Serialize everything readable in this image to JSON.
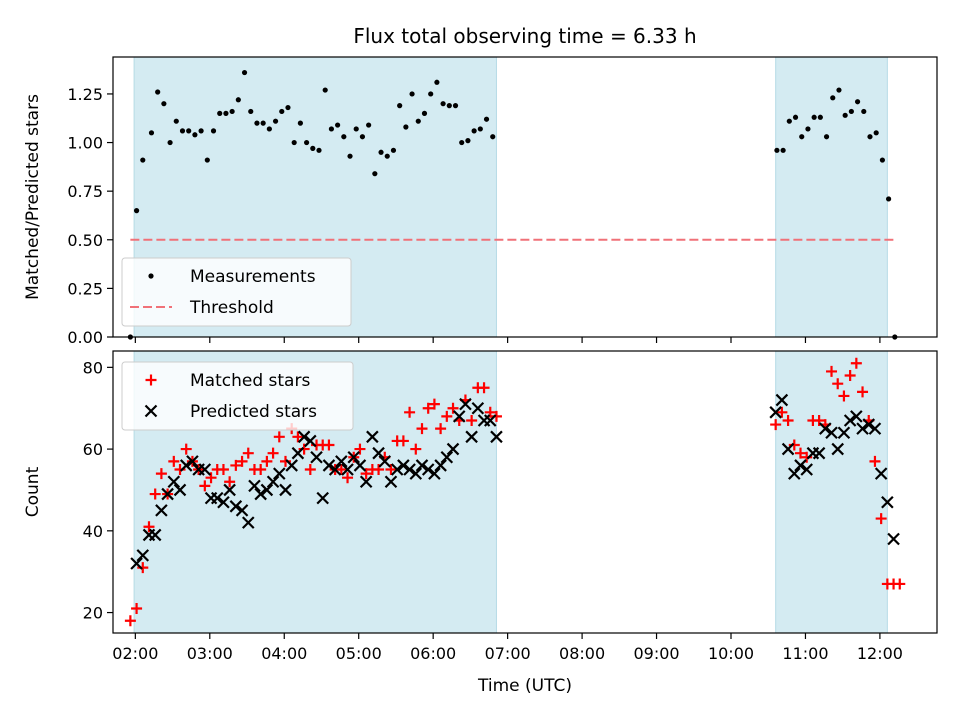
{
  "chart_data": [
    {
      "type": "scatter",
      "title": "Flux total observing time = 6.33 h",
      "xlabel": "",
      "ylabel": "Matched/Predicted stars",
      "ylim": [
        0,
        1.44
      ],
      "yticks": [
        "0.00",
        "0.25",
        "0.50",
        "0.75",
        "1.00",
        "1.25"
      ],
      "shaded_intervals": [
        [
          "01:59",
          "06:51"
        ],
        [
          "10:36",
          "12:06"
        ]
      ],
      "series": [
        {
          "name": "Measurements",
          "kind": "dot",
          "color": "#000000",
          "x": [
            "01:56",
            "02:01",
            "02:06",
            "02:13",
            "02:18",
            "02:23",
            "02:28",
            "02:33",
            "02:38",
            "02:43",
            "02:48",
            "02:53",
            "02:58",
            "03:03",
            "03:08",
            "03:13",
            "03:18",
            "03:23",
            "03:28",
            "03:33",
            "03:38",
            "03:43",
            "03:48",
            "03:53",
            "03:58",
            "04:03",
            "04:08",
            "04:13",
            "04:18",
            "04:23",
            "04:28",
            "04:33",
            "04:38",
            "04:43",
            "04:48",
            "04:53",
            "04:58",
            "05:03",
            "05:08",
            "05:13",
            "05:18",
            "05:23",
            "05:28",
            "05:33",
            "05:38",
            "05:43",
            "05:48",
            "05:53",
            "05:58",
            "06:03",
            "06:08",
            "06:13",
            "06:18",
            "06:23",
            "06:28",
            "06:33",
            "06:38",
            "06:43",
            "06:48",
            "10:37",
            "10:42",
            "10:47",
            "10:52",
            "10:57",
            "11:02",
            "11:07",
            "11:12",
            "11:17",
            "11:22",
            "11:27",
            "11:32",
            "11:37",
            "11:42",
            "11:47",
            "11:52",
            "11:57",
            "12:02",
            "12:07",
            "12:12"
          ],
          "y": [
            0.0,
            0.65,
            0.91,
            1.05,
            1.26,
            1.2,
            1.0,
            1.11,
            1.06,
            1.06,
            1.04,
            1.06,
            0.91,
            1.06,
            1.15,
            1.15,
            1.16,
            1.22,
            1.36,
            1.16,
            1.1,
            1.1,
            1.07,
            1.11,
            1.16,
            1.18,
            1.0,
            1.1,
            1.0,
            0.97,
            0.96,
            1.27,
            1.07,
            1.09,
            1.03,
            0.93,
            1.07,
            1.03,
            1.09,
            0.84,
            0.95,
            0.93,
            0.96,
            1.19,
            1.08,
            1.25,
            1.11,
            1.15,
            1.25,
            1.31,
            1.2,
            1.19,
            1.19,
            1.0,
            1.01,
            1.06,
            1.07,
            1.12,
            1.03,
            0.96,
            0.96,
            1.11,
            1.13,
            1.03,
            1.07,
            1.13,
            1.13,
            1.03,
            1.23,
            1.27,
            1.14,
            1.16,
            1.21,
            1.16,
            1.03,
            1.05,
            0.91,
            0.71,
            0.0
          ]
        },
        {
          "name": "Threshold",
          "kind": "dashed-line",
          "color": "#f07178",
          "x": [
            "01:56",
            "12:12"
          ],
          "y": [
            0.5,
            0.5
          ]
        }
      ],
      "legend": "lower-left"
    },
    {
      "type": "scatter",
      "xlabel": "Time (UTC)",
      "ylabel": "Count",
      "ylim": [
        15,
        84
      ],
      "yticks": [
        "20",
        "40",
        "60",
        "80"
      ],
      "xticks": [
        "02:00",
        "03:00",
        "04:00",
        "05:00",
        "06:00",
        "07:00",
        "08:00",
        "09:00",
        "10:00",
        "11:00",
        "12:00"
      ],
      "shaded_intervals": [
        [
          "01:59",
          "06:51"
        ],
        [
          "10:36",
          "12:06"
        ]
      ],
      "series": [
        {
          "name": "Matched stars",
          "kind": "plus",
          "color": "#ff0000",
          "x": [
            "01:56",
            "02:01",
            "02:06",
            "02:11",
            "02:16",
            "02:21",
            "02:26",
            "02:31",
            "02:36",
            "02:41",
            "02:46",
            "02:51",
            "02:56",
            "03:01",
            "03:06",
            "03:11",
            "03:16",
            "03:21",
            "03:26",
            "03:31",
            "03:36",
            "03:41",
            "03:46",
            "03:51",
            "03:56",
            "04:01",
            "04:06",
            "04:11",
            "04:16",
            "04:21",
            "04:26",
            "04:31",
            "04:36",
            "04:41",
            "04:46",
            "04:51",
            "04:56",
            "05:01",
            "05:06",
            "05:11",
            "05:16",
            "05:21",
            "05:26",
            "05:31",
            "05:36",
            "05:41",
            "05:46",
            "05:51",
            "05:56",
            "06:01",
            "06:06",
            "06:11",
            "06:16",
            "06:21",
            "06:26",
            "06:31",
            "06:36",
            "06:41",
            "06:46",
            "06:51",
            "10:36",
            "10:41",
            "10:46",
            "10:51",
            "10:56",
            "11:01",
            "11:06",
            "11:11",
            "11:16",
            "11:21",
            "11:26",
            "11:31",
            "11:36",
            "11:41",
            "11:46",
            "11:51",
            "11:56",
            "12:01",
            "12:06",
            "12:11",
            "12:16"
          ],
          "y": [
            18,
            21,
            31,
            41,
            49,
            54,
            49,
            57,
            55,
            60,
            57,
            55,
            51,
            53,
            55,
            55,
            52,
            56,
            57,
            59,
            55,
            55,
            57,
            59,
            63,
            57,
            65,
            63,
            60,
            55,
            61,
            61,
            61,
            55,
            55,
            53,
            58,
            60,
            54,
            55,
            55,
            58,
            55,
            62,
            62,
            69,
            60,
            65,
            70,
            71,
            65,
            68,
            70,
            67,
            72,
            67,
            75,
            75,
            69,
            68,
            66,
            69,
            67,
            61,
            59,
            58,
            67,
            67,
            66,
            79,
            76,
            73,
            78,
            81,
            74,
            67,
            57,
            43,
            27,
            27,
            27
          ]
        },
        {
          "name": "Predicted stars",
          "kind": "x",
          "color": "#000000",
          "x": [
            "02:01",
            "02:06",
            "02:11",
            "02:16",
            "02:21",
            "02:26",
            "02:31",
            "02:36",
            "02:41",
            "02:46",
            "02:51",
            "02:56",
            "03:01",
            "03:06",
            "03:11",
            "03:16",
            "03:21",
            "03:26",
            "03:31",
            "03:36",
            "03:41",
            "03:46",
            "03:51",
            "03:56",
            "04:01",
            "04:06",
            "04:11",
            "04:16",
            "04:21",
            "04:26",
            "04:31",
            "04:36",
            "04:41",
            "04:46",
            "04:51",
            "04:56",
            "05:01",
            "05:06",
            "05:11",
            "05:16",
            "05:21",
            "05:26",
            "05:31",
            "05:36",
            "05:41",
            "05:46",
            "05:51",
            "05:56",
            "06:01",
            "06:06",
            "06:11",
            "06:16",
            "06:21",
            "06:26",
            "06:31",
            "06:36",
            "06:41",
            "06:46",
            "06:51",
            "10:36",
            "10:41",
            "10:46",
            "10:51",
            "10:56",
            "11:01",
            "11:06",
            "11:11",
            "11:16",
            "11:21",
            "11:26",
            "11:31",
            "11:36",
            "11:41",
            "11:46",
            "11:51",
            "11:56",
            "12:01",
            "12:06",
            "12:11"
          ],
          "y": [
            32,
            34,
            39,
            39,
            45,
            49,
            52,
            50,
            56,
            57,
            55,
            55,
            48,
            48,
            47,
            50,
            46,
            45,
            42,
            51,
            49,
            50,
            52,
            54,
            50,
            56,
            59,
            63,
            62,
            58,
            48,
            56,
            55,
            57,
            55,
            58,
            56,
            52,
            63,
            59,
            57,
            52,
            55,
            56,
            55,
            54,
            56,
            55,
            54,
            56,
            58,
            60,
            68,
            71,
            63,
            70,
            67,
            67,
            63,
            69,
            72,
            60,
            54,
            56,
            55,
            59,
            59,
            65,
            64,
            60,
            64,
            67,
            68,
            65,
            66,
            65,
            54,
            47,
            38
          ]
        }
      ],
      "legend": "upper-left"
    }
  ]
}
